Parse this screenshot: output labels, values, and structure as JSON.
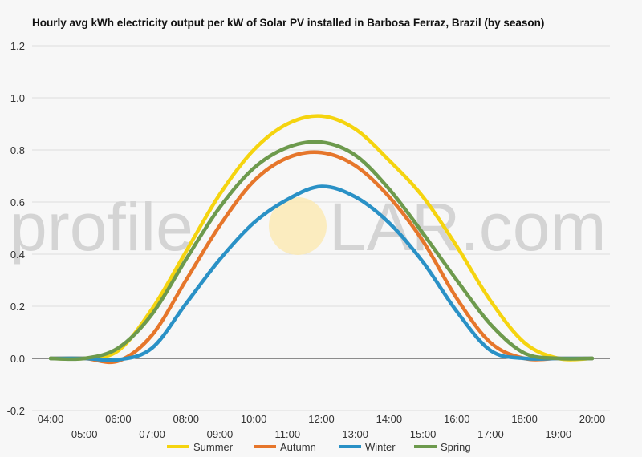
{
  "chart_data": {
    "type": "line",
    "title": "Hourly avg kWh electricity output per kW of Solar PV installed in Barbosa Ferraz, Brazil (by season)",
    "xlabel": "",
    "ylabel": "",
    "x": [
      "04:00",
      "05:00",
      "06:00",
      "07:00",
      "08:00",
      "09:00",
      "10:00",
      "11:00",
      "12:00",
      "13:00",
      "14:00",
      "15:00",
      "16:00",
      "17:00",
      "18:00",
      "19:00",
      "20:00"
    ],
    "ylim": [
      -0.2,
      1.2
    ],
    "yticks": [
      "-0.2",
      "0.0",
      "0.2",
      "0.4",
      "0.6",
      "0.8",
      "1.0",
      "1.2"
    ],
    "grid": true,
    "legend_position": "bottom",
    "series": [
      {
        "name": "Summer",
        "color": "#f5d40f",
        "values": [
          0.0,
          0.0,
          0.03,
          0.19,
          0.41,
          0.63,
          0.8,
          0.9,
          0.93,
          0.88,
          0.76,
          0.62,
          0.43,
          0.22,
          0.06,
          0.0,
          0.0
        ]
      },
      {
        "name": "Autumn",
        "color": "#e6762b",
        "values": [
          0.0,
          0.0,
          -0.01,
          0.09,
          0.3,
          0.51,
          0.68,
          0.77,
          0.79,
          0.74,
          0.62,
          0.45,
          0.23,
          0.06,
          0.0,
          0.0,
          0.0
        ]
      },
      {
        "name": "Winter",
        "color": "#2a91c6",
        "values": [
          0.0,
          0.0,
          -0.005,
          0.04,
          0.21,
          0.38,
          0.52,
          0.61,
          0.66,
          0.62,
          0.52,
          0.37,
          0.18,
          0.03,
          0.0,
          0.0,
          0.0
        ]
      },
      {
        "name": "Spring",
        "color": "#6d9a4d",
        "values": [
          0.0,
          0.0,
          0.04,
          0.17,
          0.38,
          0.58,
          0.73,
          0.81,
          0.83,
          0.78,
          0.65,
          0.48,
          0.3,
          0.13,
          0.02,
          0.0,
          0.0
        ]
      }
    ]
  },
  "watermark": {
    "text_before": "profile",
    "text_after": "LAR.com"
  }
}
